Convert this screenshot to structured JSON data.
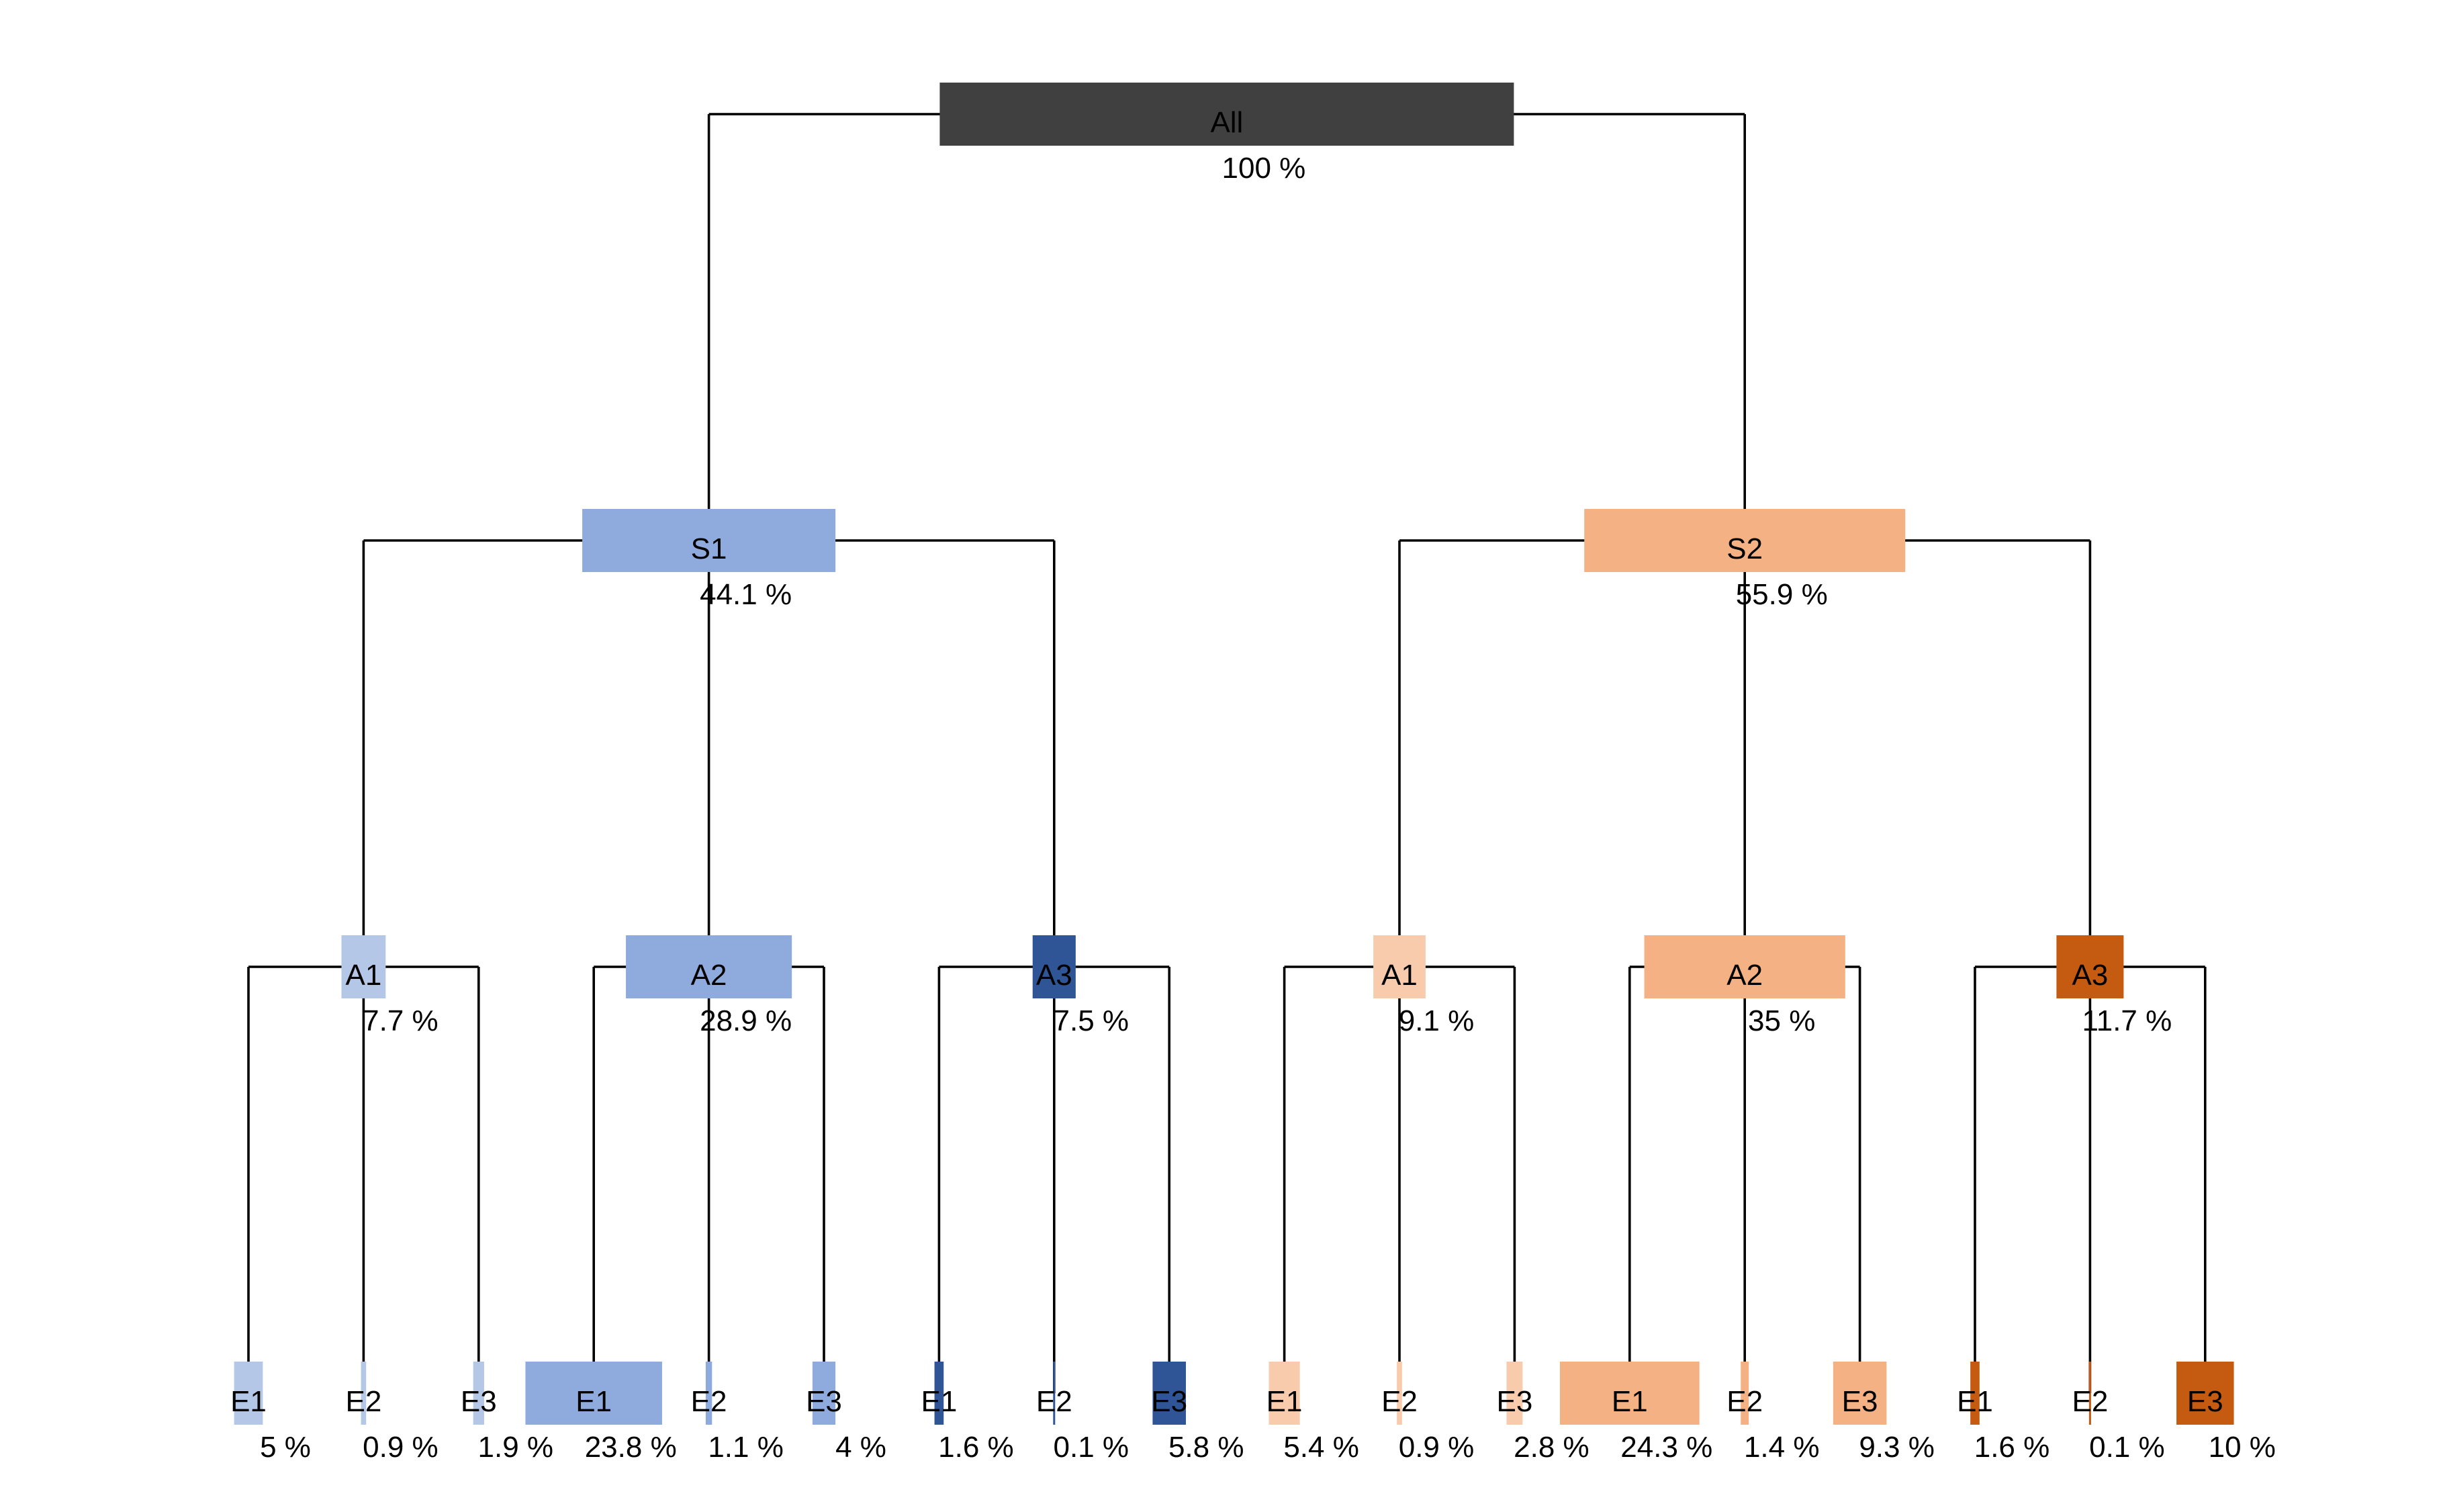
{
  "chart_data": {
    "type": "tree",
    "title": "",
    "colors": {
      "root": "#404040",
      "S1": "#8fabdd",
      "S1_A1": "#b4c7e7",
      "S1_A2": "#8fabdd",
      "S1_A3": "#2f5597",
      "S2": "#f4b183",
      "S2_A1": "#f8cbad",
      "S2_A2": "#f4b183",
      "S2_A3": "#c55a11"
    },
    "root": {
      "label": "All",
      "value": 100,
      "pct": "100 %",
      "color_key": "root",
      "children": [
        {
          "label": "S1",
          "value": 44.1,
          "pct": "44.1 %",
          "color_key": "S1",
          "children": [
            {
              "label": "A1",
              "value": 7.7,
              "pct": "7.7 %",
              "color_key": "S1_A1",
              "children": [
                {
                  "label": "E1",
                  "value": 5,
                  "pct": "5 %",
                  "color_key": "S1_A1"
                },
                {
                  "label": "E2",
                  "value": 0.9,
                  "pct": "0.9 %",
                  "color_key": "S1_A1"
                },
                {
                  "label": "E3",
                  "value": 1.9,
                  "pct": "1.9 %",
                  "color_key": "S1_A1"
                }
              ]
            },
            {
              "label": "A2",
              "value": 28.9,
              "pct": "28.9 %",
              "color_key": "S1_A2",
              "children": [
                {
                  "label": "E1",
                  "value": 23.8,
                  "pct": "23.8 %",
                  "color_key": "S1_A2"
                },
                {
                  "label": "E2",
                  "value": 1.1,
                  "pct": "1.1 %",
                  "color_key": "S1_A2"
                },
                {
                  "label": "E3",
                  "value": 4,
                  "pct": "4 %",
                  "color_key": "S1_A2"
                }
              ]
            },
            {
              "label": "A3",
              "value": 7.5,
              "pct": "7.5 %",
              "color_key": "S1_A3",
              "children": [
                {
                  "label": "E1",
                  "value": 1.6,
                  "pct": "1.6 %",
                  "color_key": "S1_A3"
                },
                {
                  "label": "E2",
                  "value": 0.1,
                  "pct": "0.1 %",
                  "color_key": "S1_A3"
                },
                {
                  "label": "E3",
                  "value": 5.8,
                  "pct": "5.8 %",
                  "color_key": "S1_A3"
                }
              ]
            }
          ]
        },
        {
          "label": "S2",
          "value": 55.9,
          "pct": "55.9 %",
          "color_key": "S2",
          "children": [
            {
              "label": "A1",
              "value": 9.1,
              "pct": "9.1 %",
              "color_key": "S2_A1",
              "children": [
                {
                  "label": "E1",
                  "value": 5.4,
                  "pct": "5.4 %",
                  "color_key": "S2_A1"
                },
                {
                  "label": "E2",
                  "value": 0.9,
                  "pct": "0.9 %",
                  "color_key": "S2_A1"
                },
                {
                  "label": "E3",
                  "value": 2.8,
                  "pct": "2.8 %",
                  "color_key": "S2_A1"
                }
              ]
            },
            {
              "label": "A2",
              "value": 35,
              "pct": "35 %",
              "color_key": "S2_A2",
              "children": [
                {
                  "label": "E1",
                  "value": 24.3,
                  "pct": "24.3 %",
                  "color_key": "S2_A2"
                },
                {
                  "label": "E2",
                  "value": 1.4,
                  "pct": "1.4 %",
                  "color_key": "S2_A2"
                },
                {
                  "label": "E3",
                  "value": 9.3,
                  "pct": "9.3 %",
                  "color_key": "S2_A2"
                }
              ]
            },
            {
              "label": "A3",
              "value": 11.7,
              "pct": "11.7 %",
              "color_key": "S2_A3",
              "children": [
                {
                  "label": "E1",
                  "value": 1.6,
                  "pct": "1.6 %",
                  "color_key": "S2_A3"
                },
                {
                  "label": "E2",
                  "value": 0.1,
                  "pct": "0.1 %",
                  "color_key": "S2_A3"
                },
                {
                  "label": "E3",
                  "value": 10,
                  "pct": "10 %",
                  "color_key": "S2_A3"
                }
              ]
            }
          ]
        }
      ]
    }
  }
}
